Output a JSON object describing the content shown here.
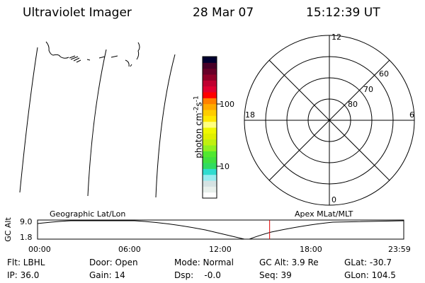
{
  "header": {
    "title": "Ultraviolet Imager",
    "date": "28 Mar 07",
    "time": "15:12:39 UT"
  },
  "colorbar": {
    "label": "photon cm",
    "label_sup1": "-2",
    "label_s": "s",
    "label_sup2": "-1",
    "scale": "log",
    "ticks": [
      "100",
      "10"
    ],
    "colors_bottom_to_top": [
      "#ffffff",
      "#e8f0ec",
      "#d4e2e2",
      "#98ecf0",
      "#30dcd0",
      "#30dc60",
      "#40e040",
      "#50e830",
      "#90f020",
      "#c0f010",
      "#e0f000",
      "#f0f800",
      "#ffff80",
      "#ffe800",
      "#ffcc00",
      "#ffaa00",
      "#ff8000",
      "#ff0000",
      "#e00030",
      "#c00030",
      "#900028",
      "#680028",
      "#480028",
      "#000030"
    ]
  },
  "polar": {
    "mlt_labels": {
      "top": "12",
      "right": "6",
      "bottom": "0",
      "left": "18"
    },
    "lat_labels": [
      "80",
      "70",
      "60"
    ]
  },
  "timeline": {
    "left_title": "Geographic Lat/Lon",
    "right_title": "Apex MLat/MLT",
    "ylabel": "GC Alt",
    "yticks": [
      "9.0",
      "1.8"
    ],
    "xticks": [
      "00:00",
      "06:00",
      "12:00",
      "18:00",
      "23:59"
    ],
    "marker_time": "15:12",
    "marker_color": "#e00000"
  },
  "status": {
    "flt": "Flt: LBHL",
    "ip": "IP: 36.0",
    "door": "Door: Open",
    "gain": "Gain: 14",
    "mode": "Mode: Normal",
    "dsp": "Dsp:    -0.0",
    "gcalt": "GC Alt: 3.9 Re",
    "seq": "Seq: 39",
    "glat": "GLat: -30.7",
    "glon": "GLon: 104.5"
  }
}
